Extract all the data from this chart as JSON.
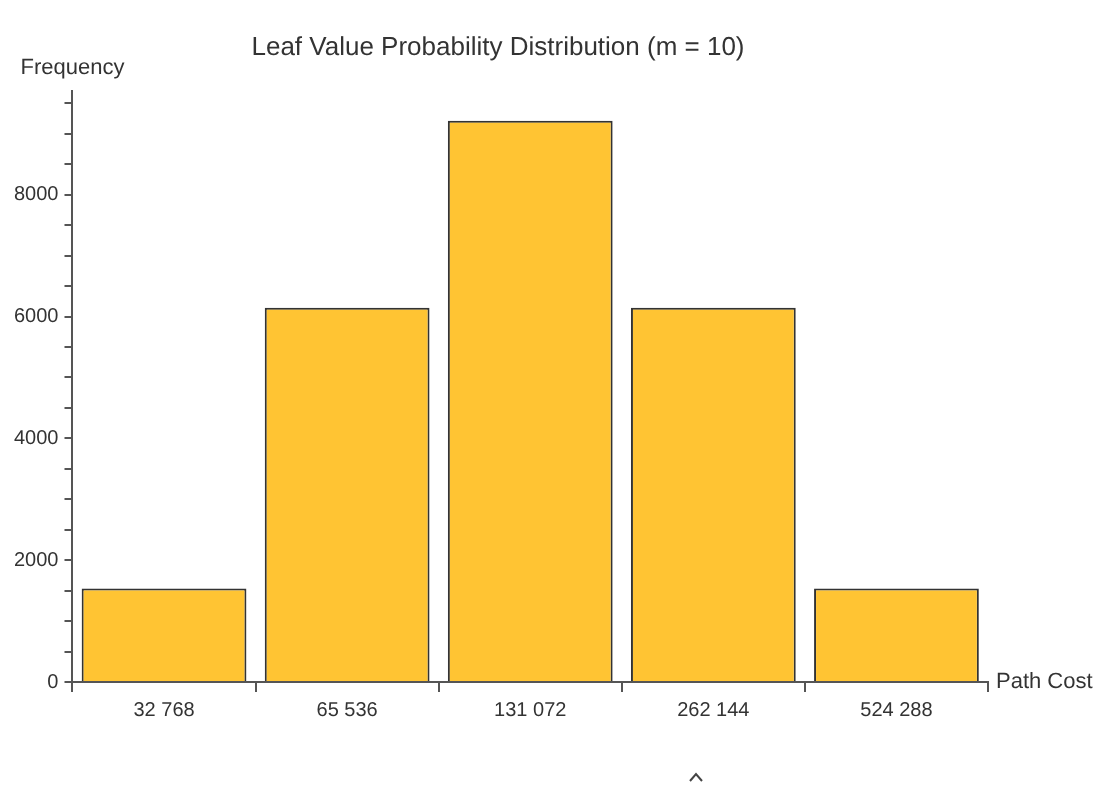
{
  "chart_data": {
    "type": "bar",
    "title": "Leaf Value Probability Distribution (m = 10)",
    "xlabel": "Path Cost",
    "ylabel": "Frequency",
    "categories": [
      "32 768",
      "65 536",
      "131 072",
      "262 144",
      "524 288"
    ],
    "values": [
      1536,
      6144,
      9216,
      6144,
      1536
    ],
    "color": "#ffc433",
    "ylim": [
      0,
      9700
    ],
    "yticks": [
      0,
      {
        "value": 500,
        "label": null
      },
      {
        "value": 1000,
        "label": null
      },
      {
        "value": 1500,
        "label": null
      },
      2000,
      {
        "value": 2500,
        "label": null
      },
      {
        "value": 3000,
        "label": null
      },
      {
        "value": 3500,
        "label": null
      },
      4000,
      {
        "value": 4500,
        "label": null
      },
      {
        "value": 5000,
        "label": null
      },
      {
        "value": 5500,
        "label": null
      },
      6000,
      {
        "value": 6500,
        "label": null
      },
      {
        "value": 7000,
        "label": null
      },
      {
        "value": 7500,
        "label": null
      },
      8000,
      {
        "value": 8500,
        "label": null
      },
      {
        "value": 9000,
        "label": null
      },
      {
        "value": 9500,
        "label": null
      }
    ],
    "grid": false,
    "legend": false
  }
}
